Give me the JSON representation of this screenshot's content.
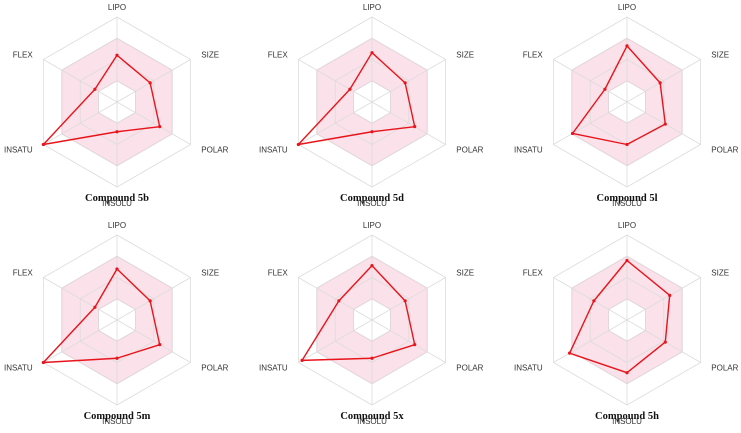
{
  "chart_data": [
    {
      "type": "radar",
      "title": "Compound 5b",
      "axes": [
        "LIPO",
        "SIZE",
        "POLAR",
        "INSOLU",
        "INSATU",
        "FLEX"
      ],
      "values": [
        0.55,
        0.45,
        0.58,
        0.35,
        1.0,
        0.3
      ],
      "optimal_range": [
        0.25,
        0.75
      ],
      "rings": 4
    },
    {
      "type": "radar",
      "title": "Compound 5d",
      "axes": [
        "LIPO",
        "SIZE",
        "POLAR",
        "INSOLU",
        "INSATU",
        "FLEX"
      ],
      "values": [
        0.58,
        0.45,
        0.58,
        0.35,
        1.0,
        0.3
      ],
      "optimal_range": [
        0.25,
        0.75
      ],
      "rings": 4
    },
    {
      "type": "radar",
      "title": "Compound 5l",
      "axes": [
        "LIPO",
        "SIZE",
        "POLAR",
        "INSOLU",
        "INSATU",
        "FLEX"
      ],
      "values": [
        0.66,
        0.45,
        0.52,
        0.5,
        0.74,
        0.3
      ],
      "optimal_range": [
        0.25,
        0.75
      ],
      "rings": 4
    },
    {
      "type": "radar",
      "title": "Compound 5m",
      "axes": [
        "LIPO",
        "SIZE",
        "POLAR",
        "INSOLU",
        "INSATU",
        "FLEX"
      ],
      "values": [
        0.6,
        0.45,
        0.58,
        0.45,
        1.0,
        0.3
      ],
      "optimal_range": [
        0.25,
        0.75
      ],
      "rings": 4
    },
    {
      "type": "radar",
      "title": "Compound 5x",
      "axes": [
        "LIPO",
        "SIZE",
        "POLAR",
        "INSOLU",
        "INSATU",
        "FLEX"
      ],
      "values": [
        0.64,
        0.45,
        0.58,
        0.45,
        0.95,
        0.45
      ],
      "optimal_range": [
        0.25,
        0.75
      ],
      "rings": 4
    },
    {
      "type": "radar",
      "title": "Compound 5h",
      "axes": [
        "LIPO",
        "SIZE",
        "POLAR",
        "INSOLU",
        "INSATU",
        "FLEX"
      ],
      "values": [
        0.7,
        0.58,
        0.52,
        0.62,
        0.78,
        0.45
      ],
      "optimal_range": [
        0.25,
        0.75
      ],
      "rings": 4
    }
  ],
  "colors": {
    "series": "#e8141b",
    "band_fill": "#fbe1ea",
    "band_stroke": "#f0b3c9",
    "grid": "#dcdcdc",
    "axis_text": "#333333"
  }
}
